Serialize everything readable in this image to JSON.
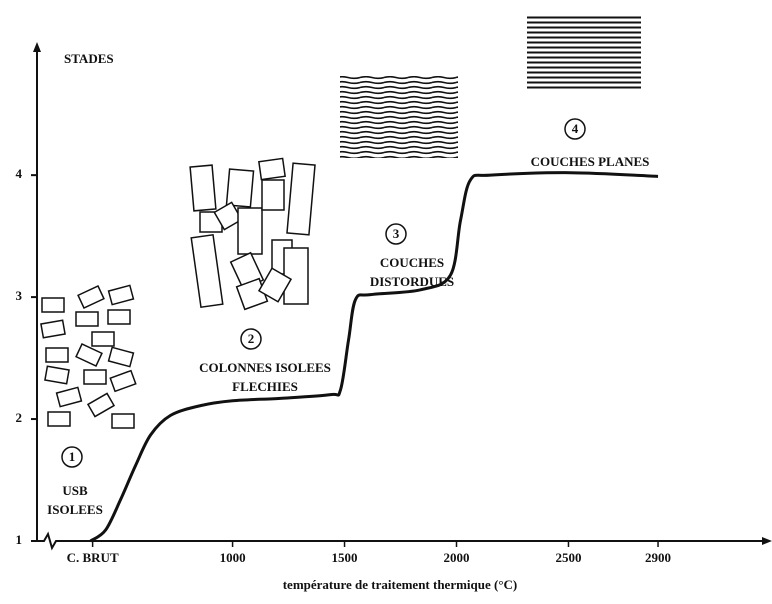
{
  "chart_data": {
    "type": "line",
    "y_label": "STADES",
    "x_label": "température de traitement thermique (°C)",
    "xlim": [
      140,
      3400
    ],
    "ylim": [
      1,
      5.1
    ],
    "xticks": [
      {
        "value": 375,
        "label": "C. BRUT"
      },
      1000,
      1500,
      2000,
      2500,
      2900
    ],
    "yticks": [
      1,
      2,
      3,
      4
    ],
    "series": [
      {
        "color": "#111111",
        "x": [
          366,
          433,
          500,
          567,
          634,
          723,
          857,
          1000,
          1214,
          1438,
          1482,
          1518,
          1549,
          1616,
          1839,
          1973,
          2018,
          2062,
          2152,
          2509,
          2900
        ],
        "values": [
          1.0,
          1.09,
          1.34,
          1.62,
          1.87,
          2.03,
          2.11,
          2.15,
          2.17,
          2.2,
          2.24,
          2.65,
          2.98,
          3.02,
          3.06,
          3.18,
          3.63,
          3.96,
          4.0,
          4.02,
          3.99
        ]
      }
    ],
    "annotations": [
      {
        "number": "1",
        "lines": [
          "USB",
          "ISOLEES"
        ]
      },
      {
        "number": "2",
        "lines": [
          "COLONNES ISOLEES",
          "FLECHIES"
        ]
      },
      {
        "number": "3",
        "lines": [
          "COUCHES",
          "DISTORDUES"
        ]
      },
      {
        "number": "4",
        "lines": [
          "COUCHES PLANES"
        ]
      }
    ]
  }
}
